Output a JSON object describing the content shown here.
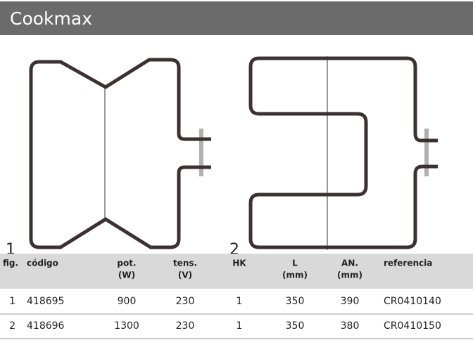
{
  "header": {
    "title": "Cookmax"
  },
  "figures": [
    {
      "label": "1"
    },
    {
      "label": "2"
    }
  ],
  "table": {
    "columns": [
      [
        "fig."
      ],
      [
        "código"
      ],
      [
        "pot.",
        "(W)"
      ],
      [
        "tens.",
        "(V)"
      ],
      [
        "HK"
      ],
      [
        "L",
        "(mm)"
      ],
      [
        "AN.",
        "(mm)"
      ],
      [
        "referencia"
      ]
    ],
    "rows": [
      [
        "1",
        "418695",
        "900",
        "230",
        "1",
        "350",
        "390",
        "CR0410140"
      ],
      [
        "2",
        "418696",
        "1300",
        "230",
        "1",
        "350",
        "380",
        "CR0410150"
      ]
    ]
  }
}
